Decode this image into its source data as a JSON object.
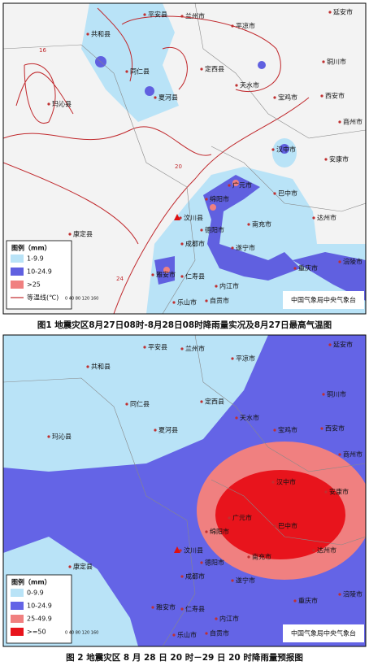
{
  "map1": {
    "legend_title": "图例（mm）",
    "legend": [
      "1-9.9",
      "10-24.9",
      ">25",
      "等温线(℃)"
    ],
    "credit": "中国气象局中央气象台",
    "scale": "0 40 80 120 160",
    "contours": [
      "16",
      "20",
      "24"
    ],
    "caption": "图1 地震灾区8月27日08时-8月28日08时降雨量实况及8月27日最高气温图",
    "cities": [
      "共和县",
      "平安县",
      "兰州市",
      "延安市",
      "平凉市",
      "同仁县",
      "定西县",
      "铜川市",
      "夏河县",
      "天水市",
      "宝鸡市",
      "西安市",
      "玛沁县",
      "商州市",
      "汉中市",
      "安康市",
      "广元市",
      "巴中市",
      "绵阳市",
      "汶川县",
      "达州市",
      "南充市",
      "德阳市",
      "成都市",
      "遂宁市",
      "康定县",
      "重庆市",
      "雅安市",
      "仁寿县",
      "内江市",
      "涪陵市",
      "乐山市",
      "自贡市"
    ]
  },
  "map2": {
    "legend_title": "图例（mm）",
    "legend": [
      "0-9.9",
      "10-24.9",
      "25-49.9",
      ">=50"
    ],
    "credit": "中国气象局中央气象台",
    "scale": "0 40 80 120 160",
    "caption": "图 2 地震灾区 8 月 28 日 20 时－29 日 20 时降雨量预报图",
    "cities": [
      "共和县",
      "平安县",
      "兰州市",
      "延安市",
      "平凉市",
      "同仁县",
      "定西县",
      "铜川市",
      "夏河县",
      "天水市",
      "宝鸡市",
      "西安市",
      "玛沁县",
      "商州市",
      "汉中市",
      "安康市",
      "广元市",
      "巴中市",
      "绵阳市",
      "汶川县",
      "达州市",
      "南充市",
      "德阳市",
      "成都市",
      "遂宁市",
      "康定县",
      "重庆市",
      "雅安市",
      "仁寿县",
      "内江市",
      "涪陵市",
      "乐山市",
      "自贡市"
    ]
  }
}
